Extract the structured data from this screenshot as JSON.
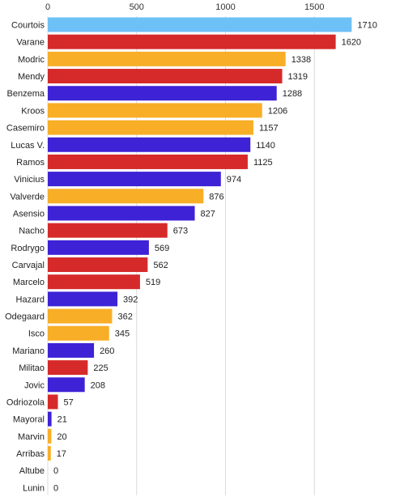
{
  "chart_data": {
    "type": "bar",
    "orientation": "horizontal",
    "title": "",
    "xlabel": "",
    "ylabel": "",
    "xlim": [
      0,
      1800
    ],
    "x_ticks": [
      0,
      500,
      1000,
      1500
    ],
    "grid": true,
    "legend": "none",
    "categories": [
      "Courtois",
      "Varane",
      "Modric",
      "Mendy",
      "Benzema",
      "Kroos",
      "Casemiro",
      "Lucas V.",
      "Ramos",
      "Vinicius",
      "Valverde",
      "Asensio",
      "Nacho",
      "Rodrygo",
      "Carvajal",
      "Marcelo",
      "Hazard",
      "Odegaard",
      "Isco",
      "Mariano",
      "Militao",
      "Jovic",
      "Odriozola",
      "Mayoral",
      "Marvin",
      "Arribas",
      "Altube",
      "Lunin"
    ],
    "values": [
      1710,
      1620,
      1338,
      1319,
      1288,
      1206,
      1157,
      1140,
      1125,
      974,
      876,
      827,
      673,
      569,
      562,
      519,
      392,
      362,
      345,
      260,
      225,
      208,
      57,
      21,
      20,
      17,
      0,
      0
    ],
    "bar_colors": [
      "#6ec1f6",
      "#d62a2a",
      "#f8ae26",
      "#d62a2a",
      "#3e22d6",
      "#f8ae26",
      "#f8ae26",
      "#3e22d6",
      "#d62a2a",
      "#3e22d6",
      "#f8ae26",
      "#3e22d6",
      "#d62a2a",
      "#3e22d6",
      "#d62a2a",
      "#d62a2a",
      "#3e22d6",
      "#f8ae26",
      "#f8ae26",
      "#3e22d6",
      "#d62a2a",
      "#3e22d6",
      "#d62a2a",
      "#3e22d6",
      "#f8ae26",
      "#f8ae26",
      "#f8ae26",
      "#3e22d6"
    ]
  }
}
